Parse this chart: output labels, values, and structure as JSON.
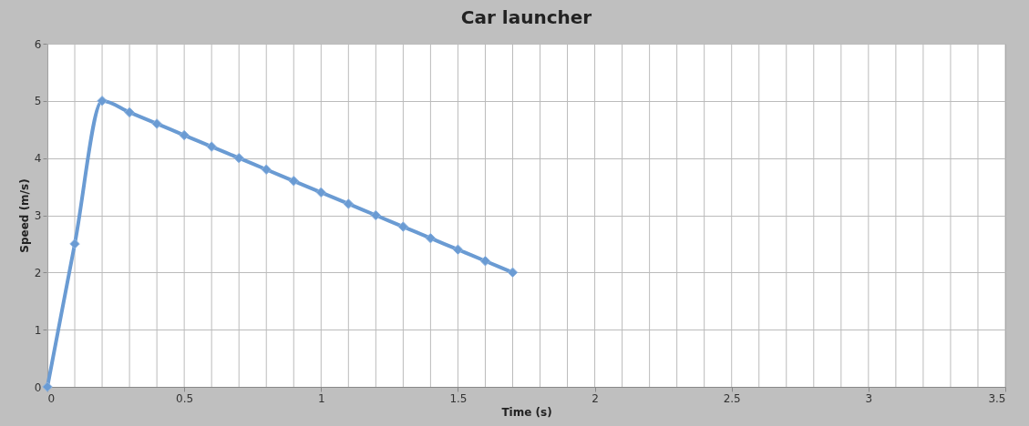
{
  "chart_data": {
    "type": "line",
    "title": "Car launcher",
    "xlabel": "Time (s)",
    "ylabel": "Speed (m/s)",
    "x": [
      0,
      0.1,
      0.2,
      0.3,
      0.4,
      0.5,
      0.6,
      0.7,
      0.8,
      0.9,
      1.0,
      1.1,
      1.2,
      1.3,
      1.4,
      1.5,
      1.6,
      1.7
    ],
    "series": [
      {
        "color": "#6a9bd3",
        "values": [
          0,
          2.5,
          5,
          4.8,
          4.6,
          4.4,
          4.2,
          4.0,
          3.8,
          3.6,
          3.4,
          3.2,
          3.0,
          2.8,
          2.6,
          2.4,
          2.2,
          2.0
        ]
      }
    ],
    "xlim": [
      0,
      3.5
    ],
    "ylim": [
      0,
      6
    ],
    "xticks": [
      0,
      {
        "value": 0.1,
        "label": null
      },
      {
        "value": 0.2,
        "label": null
      },
      {
        "value": 0.3,
        "label": null
      },
      {
        "value": 0.4,
        "label": null
      },
      0.5,
      {
        "value": 0.6,
        "label": null
      },
      {
        "value": 0.7,
        "label": null
      },
      {
        "value": 0.8,
        "label": null
      },
      {
        "value": 0.9,
        "label": null
      },
      1,
      {
        "value": 1.1,
        "label": null
      },
      {
        "value": 1.2,
        "label": null
      },
      {
        "value": 1.3,
        "label": null
      },
      {
        "value": 1.4,
        "label": null
      },
      1.5,
      {
        "value": 1.6,
        "label": null
      },
      {
        "value": 1.7,
        "label": null
      },
      {
        "value": 1.8,
        "label": null
      },
      {
        "value": 1.9,
        "label": null
      },
      2,
      {
        "value": 2.1,
        "label": null
      },
      {
        "value": 2.2,
        "label": null
      },
      {
        "value": 2.3,
        "label": null
      },
      {
        "value": 2.4,
        "label": null
      },
      2.5,
      {
        "value": 2.6,
        "label": null
      },
      {
        "value": 2.7,
        "label": null
      },
      {
        "value": 2.8,
        "label": null
      },
      {
        "value": 2.9,
        "label": null
      },
      3,
      {
        "value": 3.1,
        "label": null
      },
      {
        "value": 3.2,
        "label": null
      },
      {
        "value": 3.3,
        "label": null
      },
      {
        "value": 3.4,
        "label": null
      },
      3.5
    ],
    "yticks": [
      0,
      1,
      2,
      3,
      4,
      5,
      6
    ],
    "grid": true,
    "legend": false,
    "marker": "diamond",
    "line_style": "solid"
  }
}
